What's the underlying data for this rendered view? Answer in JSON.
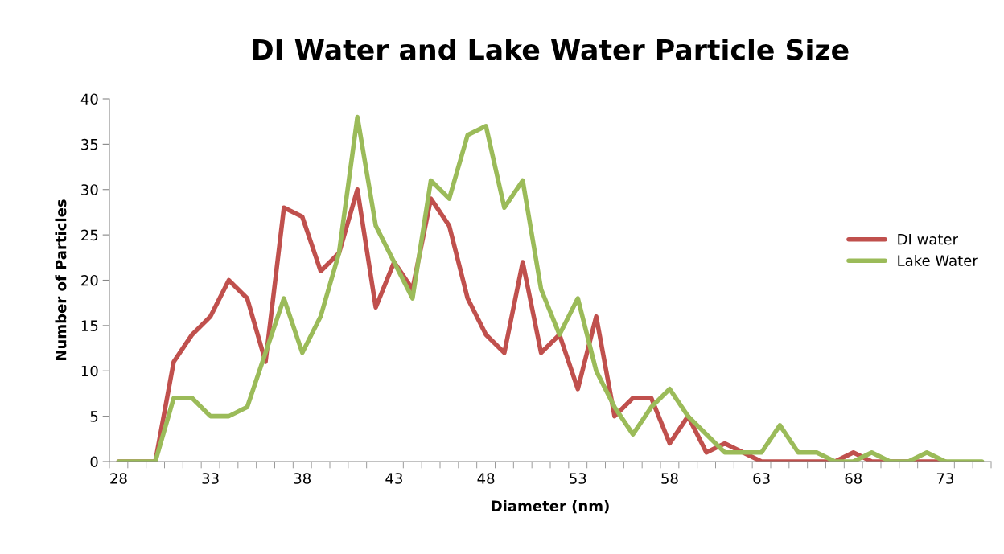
{
  "chart_data": {
    "type": "line",
    "title": "DI Water and Lake Water Particle Size",
    "xlabel": "Diameter (nm)",
    "ylabel": "Number of Particles",
    "categories": [
      "28",
      null,
      null,
      null,
      null,
      "33",
      null,
      null,
      null,
      null,
      "38",
      null,
      null,
      null,
      null,
      "43",
      null,
      null,
      null,
      null,
      "48",
      null,
      null,
      null,
      null,
      "53",
      null,
      null,
      null,
      null,
      "58",
      null,
      null,
      null,
      null,
      "63",
      null,
      null,
      null,
      null,
      "68",
      null,
      null,
      null,
      null,
      "73",
      null,
      null
    ],
    "series": [
      {
        "name": "DI water",
        "color": "#c0504d",
        "values": [
          0,
          0,
          0,
          11,
          14,
          16,
          20,
          18,
          11,
          28,
          27,
          21,
          23,
          30,
          17,
          22,
          19,
          29,
          26,
          18,
          14,
          12,
          22,
          12,
          14,
          8,
          16,
          5,
          7,
          7,
          2,
          5,
          1,
          2,
          1,
          0,
          0,
          0,
          0,
          0,
          1,
          0,
          0,
          0,
          0,
          0,
          null,
          null
        ]
      },
      {
        "name": "Lake Water",
        "color": "#9bbb59",
        "values": [
          0,
          0,
          0,
          7,
          7,
          5,
          5,
          6,
          12,
          18,
          12,
          16,
          23,
          38,
          26,
          22,
          18,
          31,
          29,
          36,
          37,
          28,
          31,
          19,
          14,
          18,
          10,
          6,
          3,
          6,
          8,
          5,
          3,
          1,
          1,
          1,
          4,
          1,
          1,
          0,
          0,
          1,
          0,
          0,
          1,
          0,
          0,
          0
        ]
      }
    ],
    "ylim": [
      0,
      40
    ],
    "yticks": [
      0,
      5,
      10,
      15,
      20,
      25,
      30,
      35,
      40
    ],
    "grid": false,
    "legend": "right",
    "line_style": "solid",
    "marker": "none"
  }
}
